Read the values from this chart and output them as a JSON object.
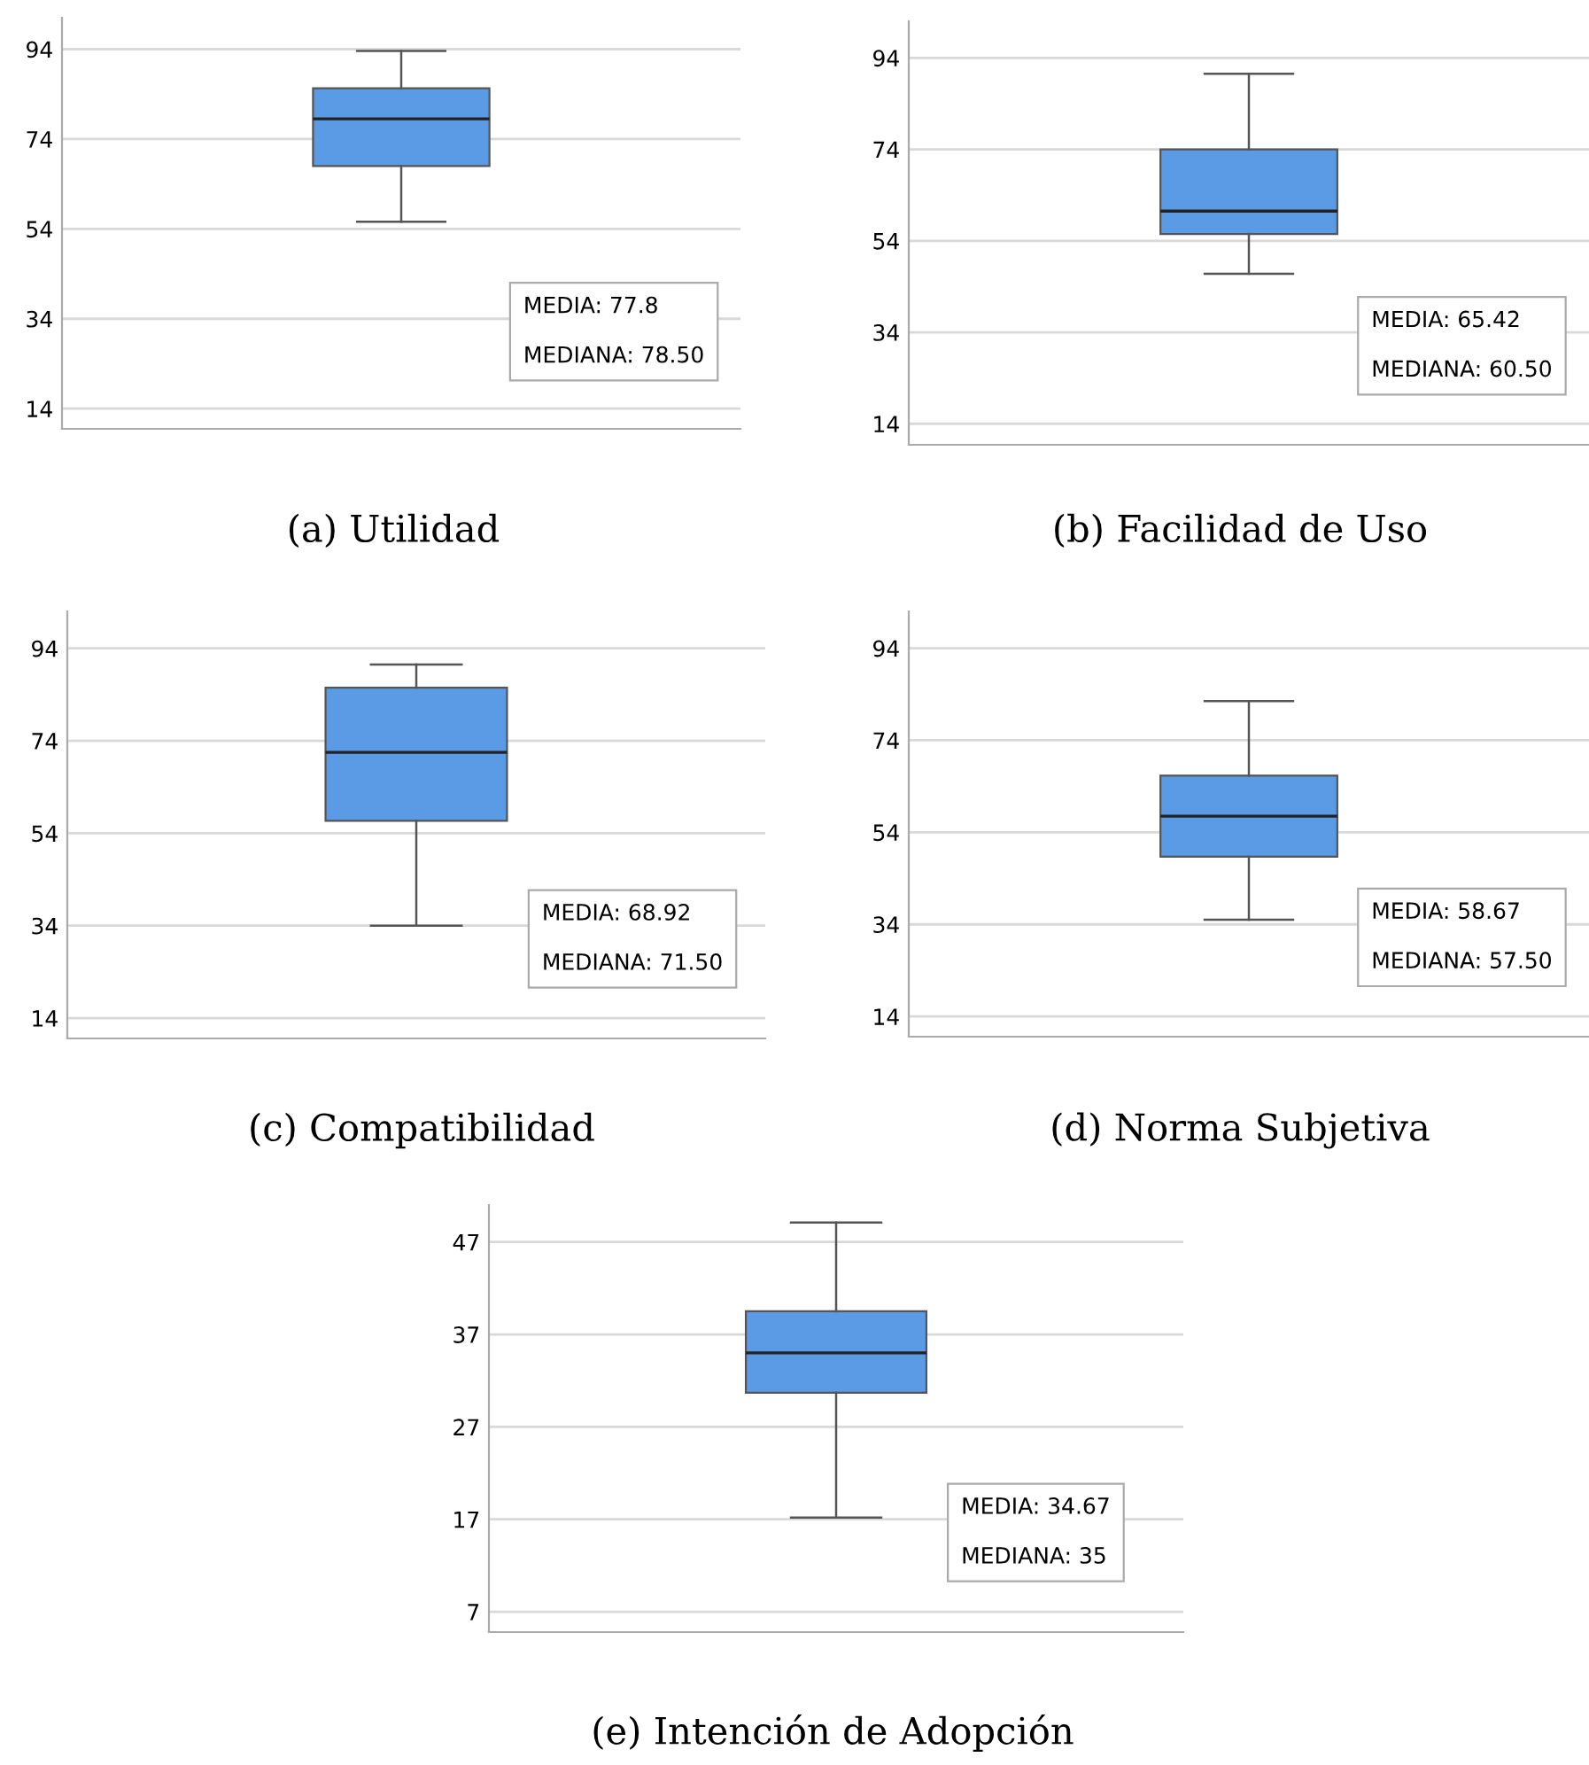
{
  "chart_data": [
    {
      "type": "box",
      "title": "(a) Utilidad",
      "categories": [
        null
      ],
      "ylim": [
        9.5,
        101
      ],
      "yticks": [
        14,
        34,
        54,
        74,
        94
      ],
      "grid": "y",
      "tick_labels": "y",
      "color": "#5b9be6",
      "boxes": [
        {
          "low": 55.6,
          "q1": 68,
          "median": 78.5,
          "q3": 85.3,
          "high": 93.6
        }
      ],
      "annotations": [
        "MEDIA: 77.8",
        "MEDIANA: 78.50"
      ]
    },
    {
      "type": "box",
      "title": "(b) Facilidad de Uso",
      "categories": [
        null
      ],
      "ylim": [
        9.4,
        102
      ],
      "yticks": [
        14,
        34,
        54,
        74,
        94
      ],
      "grid": "y",
      "tick_labels": "y",
      "color": "#5b9be6",
      "boxes": [
        {
          "low": 46.8,
          "q1": 55.5,
          "median": 60.5,
          "q3": 74,
          "high": 90.5
        }
      ],
      "annotations": [
        "MEDIA: 65.42",
        "MEDIANA: 60.50"
      ]
    },
    {
      "type": "box",
      "title": "(c) Compatibilidad",
      "categories": [
        null
      ],
      "ylim": [
        9.6,
        102
      ],
      "yticks": [
        14,
        34,
        54,
        74,
        94
      ],
      "grid": "y",
      "tick_labels": "y",
      "color": "#5b9be6",
      "boxes": [
        {
          "low": 34,
          "q1": 56.7,
          "median": 71.5,
          "q3": 85.5,
          "high": 90.5
        }
      ],
      "annotations": [
        "MEDIA: 68.92",
        "MEDIANA: 71.50"
      ]
    },
    {
      "type": "box",
      "title": "(d) Norma Subjetiva",
      "categories": [
        null
      ],
      "ylim": [
        9.6,
        102
      ],
      "yticks": [
        14,
        34,
        54,
        74,
        94
      ],
      "grid": "y",
      "tick_labels": "y",
      "color": "#5b9be6",
      "boxes": [
        {
          "low": 35,
          "q1": 48.7,
          "median": 57.5,
          "q3": 66.3,
          "high": 82.5
        }
      ],
      "annotations": [
        "MEDIA: 58.67",
        "MEDIANA: 57.50"
      ]
    },
    {
      "type": "box",
      "title": "(e) Intención de Adopción",
      "categories": [
        null
      ],
      "ylim": [
        4.8,
        51
      ],
      "yticks": [
        7,
        17,
        27,
        37,
        47
      ],
      "grid": "y",
      "tick_labels": "y",
      "color": "#5b9be6",
      "boxes": [
        {
          "low": 17.2,
          "q1": 30.7,
          "median": 35,
          "q3": 39.5,
          "high": 49.1
        }
      ],
      "annotations": [
        "MEDIA: 34.67",
        "MEDIANA: 35"
      ]
    }
  ]
}
